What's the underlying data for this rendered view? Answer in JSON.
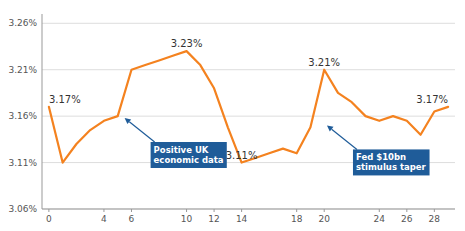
{
  "chart_data": {
    "type": "line",
    "x": [
      0,
      1,
      2,
      3,
      4,
      5,
      6,
      7,
      8,
      9,
      10,
      11,
      12,
      13,
      14,
      15,
      16,
      17,
      18,
      19,
      20,
      21,
      22,
      23,
      24,
      25,
      26,
      27,
      28,
      29
    ],
    "values": [
      3.17,
      3.11,
      3.13,
      3.145,
      3.155,
      3.16,
      3.21,
      3.215,
      3.22,
      3.225,
      3.23,
      3.215,
      3.19,
      3.148,
      3.11,
      3.115,
      3.12,
      3.125,
      3.12,
      3.148,
      3.21,
      3.185,
      3.175,
      3.16,
      3.155,
      3.16,
      3.155,
      3.14,
      3.165,
      3.17
    ],
    "color": "#F4821F",
    "xlim": [
      -0.5,
      29.5
    ],
    "ylim": [
      3.06,
      3.27
    ],
    "xticks": [
      0,
      4,
      6,
      10,
      12,
      14,
      18,
      20,
      24,
      26,
      28
    ],
    "yticks": [
      {
        "value": 3.06,
        "label": "3.06%"
      },
      {
        "value": 3.11,
        "label": "3.11%"
      },
      {
        "value": 3.16,
        "label": "3.16%"
      },
      {
        "value": 3.21,
        "label": "3.21%"
      },
      {
        "value": 3.26,
        "label": "3.26%"
      }
    ],
    "grid": "y",
    "annotations": [
      {
        "x": 0,
        "y": 3.17,
        "text": "3.17%"
      },
      {
        "x": 10,
        "y": 3.23,
        "text": "3.23%"
      },
      {
        "x": 14,
        "y": 3.11,
        "text": "3.11%"
      },
      {
        "x": 20,
        "y": 3.21,
        "text": "3.21%"
      },
      {
        "x": 29,
        "y": 3.17,
        "text": "3.17%"
      }
    ],
    "callouts": [
      {
        "x": 5.5,
        "y": 3.158,
        "text": "Positive UK\neconomic data",
        "color": "#1F5C99"
      },
      {
        "x": 20.2,
        "y": 3.15,
        "text": "Fed $10bn\nstimulus taper",
        "color": "#1F5C99"
      }
    ]
  }
}
